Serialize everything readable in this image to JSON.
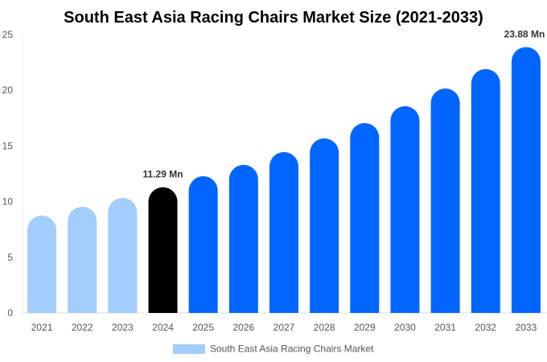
{
  "chart_data": {
    "type": "bar",
    "title": "South East Asia Racing Chairs Market Size (2021-2033)",
    "xlabel": "",
    "ylabel": "",
    "ylim": [
      0,
      25
    ],
    "yticks": [
      0,
      5,
      10,
      15,
      20,
      25
    ],
    "grid": false,
    "legend_placement": "bottom",
    "categories": [
      "2021",
      "2022",
      "2023",
      "2024",
      "2025",
      "2026",
      "2027",
      "2028",
      "2029",
      "2030",
      "2031",
      "2032",
      "2033"
    ],
    "series": [
      {
        "name": "South East Asia Racing Chairs Market",
        "values": [
          8.74,
          9.54,
          10.33,
          11.29,
          12.28,
          13.3,
          14.45,
          15.68,
          17.05,
          18.57,
          20.16,
          21.9,
          23.88
        ]
      }
    ],
    "annotations": [
      {
        "category": "2024",
        "text": "11.29 Mn"
      },
      {
        "category": "2033",
        "text": "23.88 Mn"
      }
    ],
    "colors": {
      "historical": "#a3cdfd",
      "current": "#000000",
      "forecast": "#0066ff",
      "legend": "#a3cdfd"
    },
    "current_year": "2024"
  }
}
